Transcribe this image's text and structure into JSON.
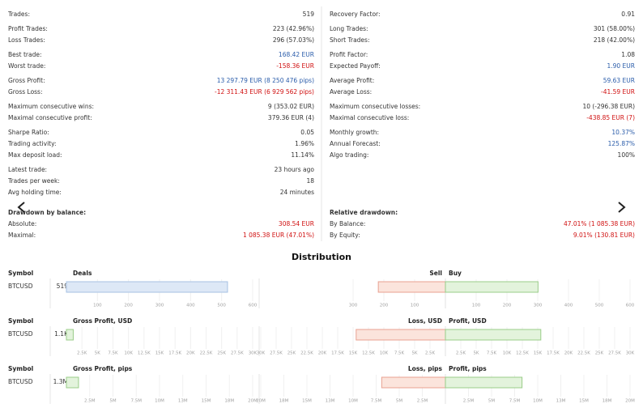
{
  "stats": {
    "left": [
      [
        {
          "label": "Trades:",
          "value": "519"
        }
      ],
      [
        {
          "label": "Profit Trades:",
          "value": "223 (42.96%)"
        },
        {
          "label": "Loss Trades:",
          "value": "296 (57.03%)"
        }
      ],
      [
        {
          "label": "Best trade:",
          "value": "168.42 EUR",
          "color": "#2a5caa"
        },
        {
          "label": "Worst trade:",
          "value": "-158.36 EUR",
          "color": "#d01010"
        }
      ],
      [
        {
          "label": "Gross Profit:",
          "value": "13 297.79 EUR (8 250 476 pips)",
          "color": "#2a5caa"
        },
        {
          "label": "Gross Loss:",
          "value": "-12 311.43 EUR (6 929 562 pips)",
          "color": "#d01010"
        }
      ],
      [
        {
          "label": "Maximum consecutive wins:",
          "value": "9 (353.02 EUR)"
        },
        {
          "label": "Maximal consecutive profit:",
          "value": "379.36 EUR (4)"
        }
      ],
      [
        {
          "label": "Sharpe Ratio:",
          "value": "0.05"
        },
        {
          "label": "Trading activity:",
          "value": "1.96%"
        },
        {
          "label": "Max deposit load:",
          "value": "11.14%"
        }
      ],
      [
        {
          "label": "Latest trade:",
          "value": "23 hours ago"
        },
        {
          "label": "Trades per week:",
          "value": "18"
        },
        {
          "label": "Avg holding time:",
          "value": "24 minutes"
        }
      ]
    ],
    "right": [
      [
        {
          "label": "Recovery Factor:",
          "value": "0.91"
        }
      ],
      [
        {
          "label": "Long Trades:",
          "value": "301 (58.00%)"
        },
        {
          "label": "Short Trades:",
          "value": "218 (42.00%)"
        }
      ],
      [
        {
          "label": "Profit Factor:",
          "value": "1.08"
        },
        {
          "label": "Expected Payoff:",
          "value": "1.90 EUR",
          "color": "#2a5caa"
        }
      ],
      [
        {
          "label": "Average Profit:",
          "value": "59.63 EUR",
          "color": "#2a5caa"
        },
        {
          "label": "Average Loss:",
          "value": "-41.59 EUR",
          "color": "#d01010"
        }
      ],
      [
        {
          "label": "Maximum consecutive losses:",
          "value": "10 (-296.38 EUR)"
        },
        {
          "label": "Maximal consecutive loss:",
          "value": "-438.85 EUR (7)",
          "color": "#d01010"
        }
      ],
      [
        {
          "label": "Monthly growth:",
          "value": "10.37%",
          "color": "#2a5caa"
        },
        {
          "label": "Annual Forecast:",
          "value": "125.87%",
          "color": "#2a5caa"
        },
        {
          "label": "Algo trading:",
          "value": "100%"
        }
      ]
    ]
  },
  "drawdown": {
    "left": {
      "title": "Drawdown by balance:",
      "rows": [
        {
          "label": "Absolute:",
          "value": "308.54 EUR",
          "color": "#d01010"
        },
        {
          "label": "Maximal:",
          "value": "1 085.38 EUR (47.01%)",
          "color": "#d01010"
        }
      ]
    },
    "right": {
      "title": "Relative drawdown:",
      "rows": [
        {
          "label": "By Balance:",
          "value": "47.01% (1 085.38 EUR)",
          "color": "#d01010"
        },
        {
          "label": "By Equity:",
          "value": "9.01% (130.81 EUR)",
          "color": "#d01010"
        }
      ]
    }
  },
  "distribution": {
    "title": "Distribution",
    "blocks": [
      {
        "symbol_header": "Symbol",
        "symbol": "BTCUSD",
        "total": 519,
        "left_title": "Deals",
        "left_fill": "#dde8f6",
        "left_stroke": "#a6c1e3",
        "xlim": [
          0,
          600
        ],
        "xticks": [
          100,
          200,
          300,
          400,
          500,
          600
        ],
        "neg_title": "Sell",
        "pos_title": "Buy",
        "neg_value": 218,
        "pos_value": 301,
        "neg_lim": [
          0,
          300
        ],
        "neg_ticks": [
          100,
          200,
          300
        ],
        "pos_lim": [
          0,
          600
        ],
        "pos_ticks": [
          100,
          200,
          300,
          400,
          500,
          600
        ]
      },
      {
        "symbol_header": "Symbol",
        "symbol": "BTCUSD",
        "total": 1100,
        "total_label": "1.1K",
        "left_title": "Gross Profit, USD",
        "left_fill": "#e3f3dc",
        "left_stroke": "#99cc88",
        "xlim": [
          0,
          30000
        ],
        "xticks": [
          {
            "value": 2500,
            "label": "2.5K"
          },
          {
            "value": 5000,
            "label": "5K"
          },
          {
            "value": 7500,
            "label": "7.5K"
          },
          {
            "value": 10000,
            "label": "10K"
          },
          {
            "value": 12500,
            "label": "12.5K"
          },
          {
            "value": 15000,
            "label": "15K"
          },
          {
            "value": 17500,
            "label": "17.5K"
          },
          {
            "value": 20000,
            "label": "20K"
          },
          {
            "value": 22500,
            "label": "22.5K"
          },
          {
            "value": 25000,
            "label": "25K"
          },
          {
            "value": 27500,
            "label": "27.5K"
          },
          {
            "value": 30000,
            "label": "30K"
          }
        ],
        "neg_title": "Loss, USD",
        "pos_title": "Profit, USD",
        "neg_value": 14500,
        "pos_value": 15500,
        "neg_lim": [
          0,
          30000
        ],
        "neg_ticks": [
          {
            "value": 2500,
            "label": "2.5K"
          },
          {
            "value": 5000,
            "label": "5K"
          },
          {
            "value": 7500,
            "label": "7.5K"
          },
          {
            "value": 10000,
            "label": "10K"
          },
          {
            "value": 12500,
            "label": "12.5K"
          },
          {
            "value": 15000,
            "label": "15K"
          },
          {
            "value": 17500,
            "label": "17.5K"
          },
          {
            "value": 20000,
            "label": "20K"
          },
          {
            "value": 22500,
            "label": "22.5K"
          },
          {
            "value": 25000,
            "label": "25K"
          },
          {
            "value": 27500,
            "label": "27.5K"
          },
          {
            "value": 30000,
            "label": "30K"
          }
        ],
        "pos_lim": [
          0,
          30000
        ],
        "pos_ticks": [
          {
            "value": 2500,
            "label": "2.5K"
          },
          {
            "value": 5000,
            "label": "5K"
          },
          {
            "value": 7500,
            "label": "7.5K"
          },
          {
            "value": 10000,
            "label": "10K"
          },
          {
            "value": 12500,
            "label": "12.5K"
          },
          {
            "value": 15000,
            "label": "15K"
          },
          {
            "value": 17500,
            "label": "17.5K"
          },
          {
            "value": 20000,
            "label": "20K"
          },
          {
            "value": 22500,
            "label": "22.5K"
          },
          {
            "value": 25000,
            "label": "25K"
          },
          {
            "value": 27500,
            "label": "27.5K"
          },
          {
            "value": 30000,
            "label": "30K"
          }
        ]
      },
      {
        "symbol_header": "Symbol",
        "symbol": "BTCUSD",
        "total": 1300000,
        "total_label": "1.3M",
        "left_title": "Gross Profit, pips",
        "left_fill": "#e3f3dc",
        "left_stroke": "#99cc88",
        "xlim": [
          0,
          20000000
        ],
        "xticks": [
          {
            "value": 2500000,
            "label": "2.5M"
          },
          {
            "value": 5000000,
            "label": "5M"
          },
          {
            "value": 7500000,
            "label": "7.5M"
          },
          {
            "value": 10000000,
            "label": "10M"
          },
          {
            "value": 12500000,
            "label": "13M"
          },
          {
            "value": 15000000,
            "label": "15M"
          },
          {
            "value": 17500000,
            "label": "18M"
          },
          {
            "value": 20000000,
            "label": "20M"
          }
        ],
        "neg_title": "Loss, pips",
        "pos_title": "Profit, pips",
        "neg_value": 6900000,
        "pos_value": 8300000,
        "neg_lim": [
          0,
          20000000
        ],
        "neg_ticks": [
          {
            "value": 2500000,
            "label": "2.5M"
          },
          {
            "value": 5000000,
            "label": "5M"
          },
          {
            "value": 7500000,
            "label": "7.5M"
          },
          {
            "value": 10000000,
            "label": "10M"
          },
          {
            "value": 12500000,
            "label": "13M"
          },
          {
            "value": 15000000,
            "label": "15M"
          },
          {
            "value": 17500000,
            "label": "18M"
          },
          {
            "value": 20000000,
            "label": "20M"
          }
        ],
        "pos_lim": [
          0,
          20000000
        ],
        "pos_ticks": [
          {
            "value": 2500000,
            "label": "2.5M"
          },
          {
            "value": 5000000,
            "label": "5M"
          },
          {
            "value": 7500000,
            "label": "7.5M"
          },
          {
            "value": 10000000,
            "label": "10M"
          },
          {
            "value": 12500000,
            "label": "13M"
          },
          {
            "value": 15000000,
            "label": "15M"
          },
          {
            "value": 17500000,
            "label": "18M"
          },
          {
            "value": 20000000,
            "label": "20M"
          }
        ]
      }
    ]
  }
}
